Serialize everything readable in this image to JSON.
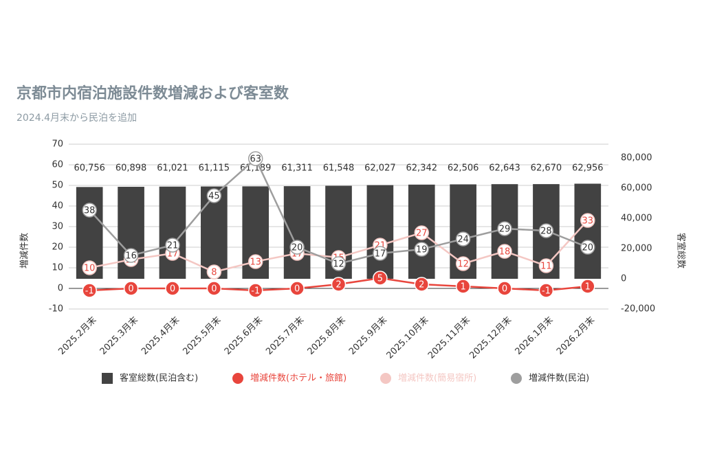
{
  "chart_data": {
    "type": "combo",
    "title": "京都市内宿泊施設件数増減および客室数",
    "subtitle": "2024.4月末から民泊を追加",
    "ylabel": "増減件数",
    "y2label": "客室総数",
    "categories": [
      "2025.2月末",
      "2025.3月末",
      "2025.4月末",
      "2025.5月末",
      "2025.6月末",
      "2025.7月末",
      "2025.8月末",
      "2025.9月末",
      "2025.10月末",
      "2025.11月末",
      "2025.12月末",
      "2026.1月末",
      "2026.2月末"
    ],
    "ylim": [
      -10,
      70
    ],
    "yticks": [
      -10,
      0,
      10,
      20,
      30,
      40,
      50,
      60,
      70
    ],
    "y2lim": [
      -20000,
      89091
    ],
    "y2ticks": [
      {
        "value": -20000,
        "label": "-20,000"
      },
      0,
      {
        "value": 20000,
        "label": "20,000"
      },
      {
        "value": 40000,
        "label": "40,000"
      },
      {
        "value": 60000,
        "label": "60,000"
      },
      {
        "value": 80000,
        "label": "80,000"
      }
    ],
    "grid": true,
    "series": [
      {
        "name": "客室総数(民泊含む)",
        "type": "bar",
        "axis": "y2",
        "color": "#424242",
        "values": [
          60756,
          60898,
          61021,
          61115,
          61189,
          61311,
          61548,
          62027,
          62342,
          62506,
          62643,
          62670,
          62956
        ],
        "value_labels": [
          "60,756",
          "60,898",
          "61,021",
          "61,115",
          "61,189",
          "61,311",
          "61,548",
          "62,027",
          "62,342",
          "62,506",
          "62,643",
          "62,670",
          "62,956"
        ]
      },
      {
        "name": "増減件数(ホテル・旅館)",
        "type": "line",
        "color": "#e8453c",
        "values": [
          -1,
          0,
          0,
          0,
          -1,
          0,
          2,
          5,
          2,
          1,
          0,
          -1,
          1
        ]
      },
      {
        "name": "増減件数(簡易宿所)",
        "type": "line",
        "color": "#f4c7c3",
        "values": [
          10,
          14,
          17,
          8,
          13,
          17,
          15,
          21,
          27,
          12,
          18,
          11,
          33
        ]
      },
      {
        "name": "増減件数(民泊)",
        "type": "line",
        "color": "#9e9e9e",
        "values": [
          38,
          16,
          21,
          45,
          63,
          20,
          12,
          17,
          19,
          24,
          29,
          28,
          20
        ]
      }
    ]
  }
}
